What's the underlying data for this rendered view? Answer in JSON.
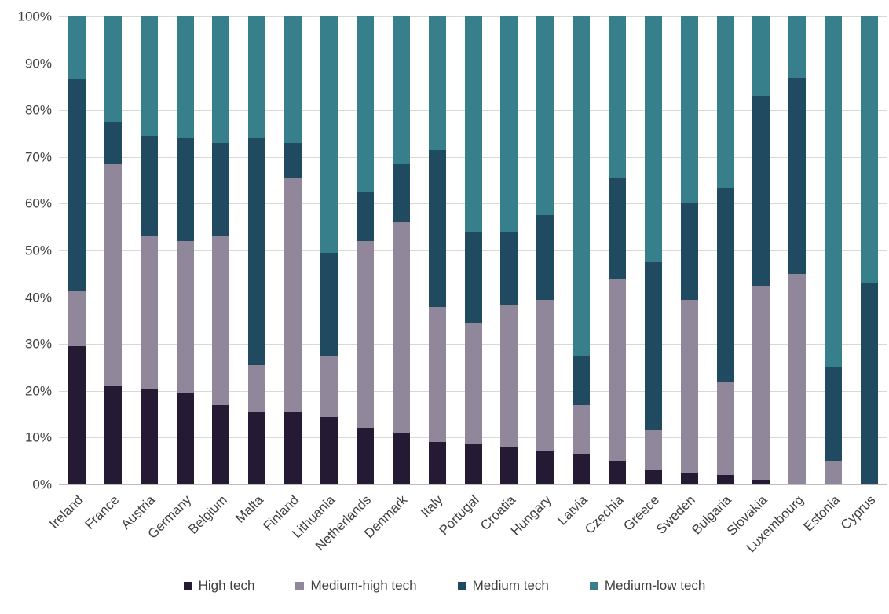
{
  "chart_data": {
    "type": "bar",
    "stacked": true,
    "percent_stacked": true,
    "title": "",
    "xlabel": "",
    "ylabel": "",
    "ylim": [
      0,
      100
    ],
    "grid": "horizontal",
    "legend_position": "bottom",
    "y_tick_labels": [
      "0%",
      "10%",
      "20%",
      "30%",
      "40%",
      "50%",
      "60%",
      "70%",
      "80%",
      "90%",
      "100%"
    ],
    "categories": [
      "Ireland",
      "France",
      "Austria",
      "Germany",
      "Belgium",
      "Malta",
      "Finland",
      "Lithuania",
      "Netherlands",
      "Denmark",
      "Italy",
      "Portugal",
      "Croatia",
      "Hungary",
      "Latvia",
      "Czechia",
      "Greece",
      "Sweden",
      "Bulgaria",
      "Slovakia",
      "Luxembourg",
      "Estonia",
      "Cyprus"
    ],
    "series": [
      {
        "name": "High tech",
        "color": "#241a33",
        "values": [
          29.5,
          21,
          20.5,
          19.5,
          17,
          15.5,
          15.5,
          14.5,
          12,
          11,
          9,
          8.5,
          8,
          7,
          6.5,
          5,
          3,
          2.5,
          2,
          1,
          0,
          0,
          0
        ]
      },
      {
        "name": "Medium-high tech",
        "color": "#91879a",
        "values": [
          12,
          47.5,
          32.5,
          32.5,
          36,
          10,
          50,
          13,
          40,
          45,
          29,
          26,
          30.5,
          32.5,
          10.5,
          39,
          8.5,
          37,
          20,
          41.5,
          45,
          5,
          0
        ]
      },
      {
        "name": "Medium tech",
        "color": "#1f4a5f",
        "values": [
          45,
          9,
          21.5,
          22,
          20,
          48.5,
          7.5,
          22,
          10.5,
          12.5,
          33.5,
          19.5,
          15.5,
          18,
          10.5,
          21.5,
          36,
          20.5,
          41.5,
          40.5,
          42,
          20,
          43
        ]
      },
      {
        "name": "Medium-low tech",
        "color": "#37808b",
        "values": [
          13.5,
          22.5,
          25.5,
          26,
          27,
          26,
          27,
          50.5,
          37.5,
          31.5,
          28.5,
          46,
          46,
          42.5,
          72.5,
          34.5,
          52.5,
          40,
          36.5,
          17,
          13,
          75,
          57
        ]
      }
    ]
  },
  "styles": {
    "background": "#ffffff",
    "grid_color": "#d9d9d9",
    "axis_line_color": "#bfbfbf",
    "label_color": "#404040"
  }
}
